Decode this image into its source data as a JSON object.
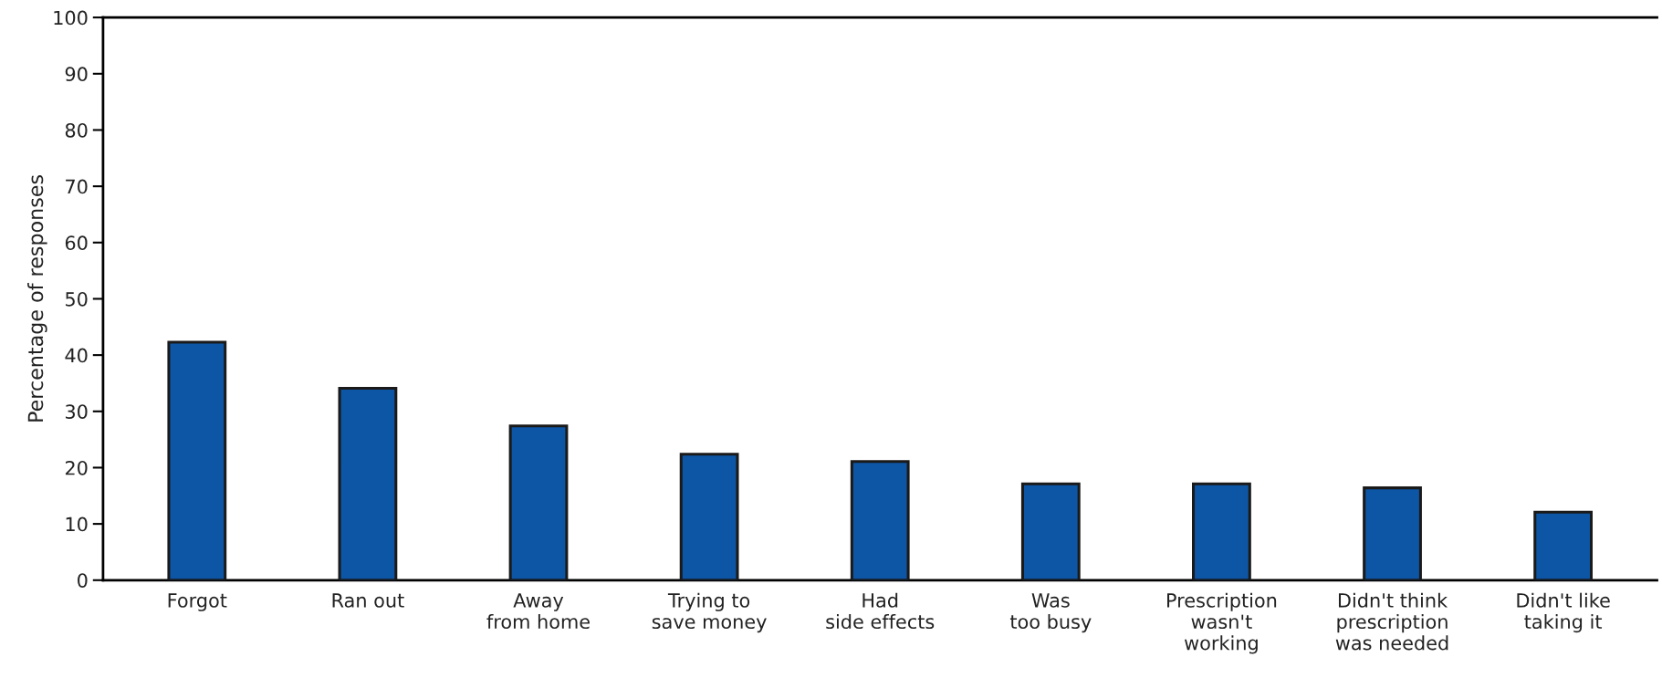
{
  "chart_data": {
    "type": "bar",
    "ylabel": "Percentage of responses",
    "categories": [
      "Forgot",
      "Ran out",
      "Away\nfrom home",
      "Trying to\nsave money",
      "Had\nside effects",
      "Was\ntoo busy",
      "Prescription\nwasn't\nworking",
      "Didn't think\nprescription\nwas needed",
      "Didn't like\ntaking it"
    ],
    "values": [
      42.3,
      34.1,
      27.4,
      22.4,
      21.1,
      17.1,
      17.1,
      16.4,
      12.1
    ],
    "color": "#0d56a6",
    "ylim": [
      0,
      100
    ],
    "yticks": [
      0,
      10,
      20,
      30,
      40,
      50,
      60,
      70,
      80,
      90,
      100
    ],
    "grid": false
  }
}
